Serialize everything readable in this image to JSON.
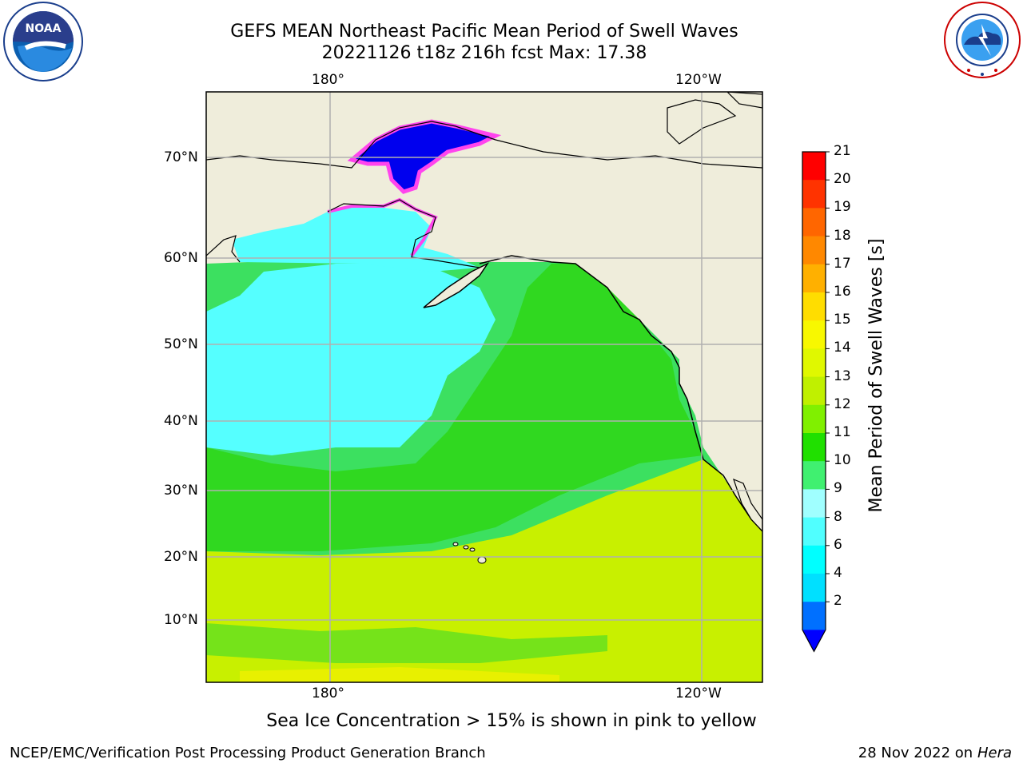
{
  "title_line1": "GEFS MEAN Northeast Pacific Mean Period of Swell Waves",
  "title_line2": "20221126 t18z 216h fcst   Max: 17.38",
  "lon_labels": [
    "180°",
    "120°W"
  ],
  "lat_labels": [
    "70°N",
    "60°N",
    "50°N",
    "40°N",
    "30°N",
    "20°N",
    "10°N"
  ],
  "colorbar": {
    "label": "Mean Period of Swell Waves [s]",
    "ticks": [
      "21",
      "20",
      "19",
      "18",
      "17",
      "16",
      "15",
      "14",
      "13",
      "12",
      "11",
      "10",
      "9",
      "8",
      "6",
      "4",
      "2"
    ],
    "colors": [
      "#ff0000",
      "#ff3300",
      "#ff6600",
      "#ff8800",
      "#ffb000",
      "#ffdd00",
      "#f8f800",
      "#e0f800",
      "#c0f000",
      "#80f000",
      "#20e000",
      "#40f070",
      "#a0ffff",
      "#50ffff",
      "#00ffff",
      "#00e0ff",
      "#0070ff",
      "#0000ff"
    ]
  },
  "caption": "Sea Ice Concentration > 15% is shown in pink to yellow",
  "footer_left": "NCEP/EMC/Verification Post Processing Product Generation Branch",
  "footer_right_prefix": "28 Nov 2022 on",
  "footer_right_host": "Hera",
  "logos": {
    "left": "NOAA",
    "right": "NATIONAL WEATHER SERVICE"
  }
}
